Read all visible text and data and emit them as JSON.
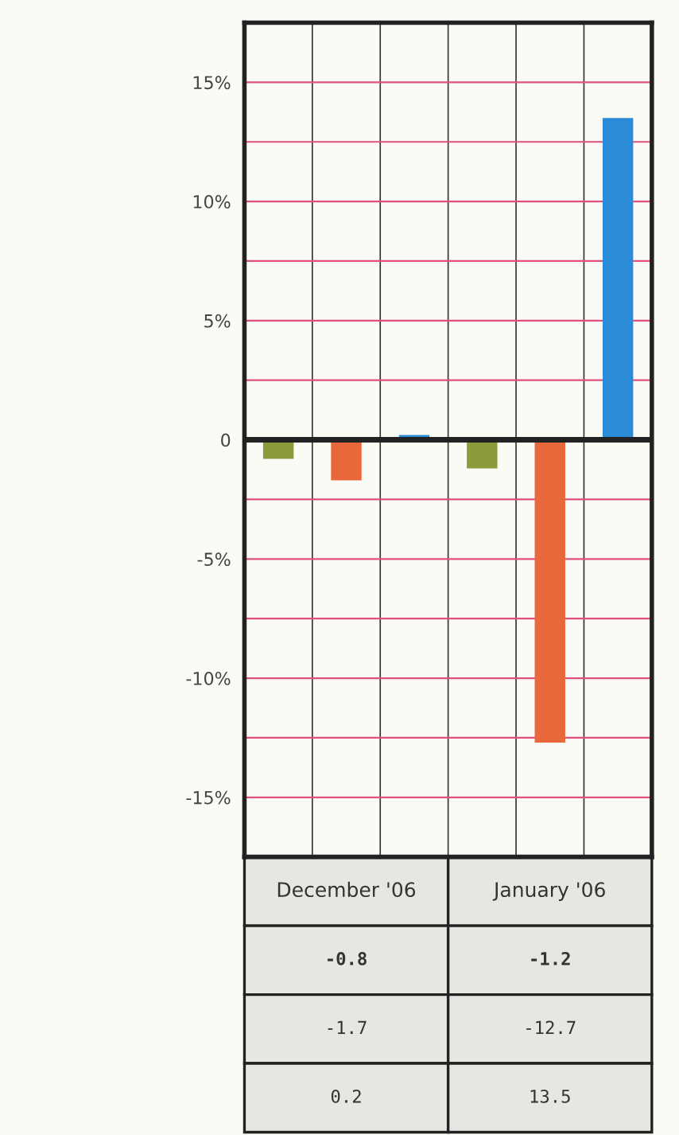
{
  "chart_data": {
    "type": "bar",
    "categories": [
      "December '06",
      "January '06"
    ],
    "series": [
      {
        "color": "#8c9a3c",
        "values": [
          -0.8,
          -1.2
        ]
      },
      {
        "color": "#e8683c",
        "values": [
          -1.7,
          -12.7
        ]
      },
      {
        "color": "#2a8bd6",
        "values": [
          0.2,
          13.5
        ]
      }
    ],
    "ylim": [
      -17.5,
      17.5
    ],
    "yticks": [
      {
        "value": -15,
        "label": "-15%"
      },
      {
        "value": -12.5,
        "label": null
      },
      {
        "value": -10,
        "label": "-10%"
      },
      {
        "value": -7.5,
        "label": null
      },
      {
        "value": -5,
        "label": "-5%"
      },
      {
        "value": -2.5,
        "label": null
      },
      {
        "value": 0,
        "label": "0"
      },
      {
        "value": 2.5,
        "label": null
      },
      {
        "value": 5,
        "label": "5%"
      },
      {
        "value": 7.5,
        "label": null
      },
      {
        "value": 10,
        "label": "10%"
      },
      {
        "value": 12.5,
        "label": null
      },
      {
        "value": 15,
        "label": "15%"
      },
      {
        "value": 17.5,
        "label": null
      }
    ],
    "grid": true,
    "data_labels": true
  }
}
